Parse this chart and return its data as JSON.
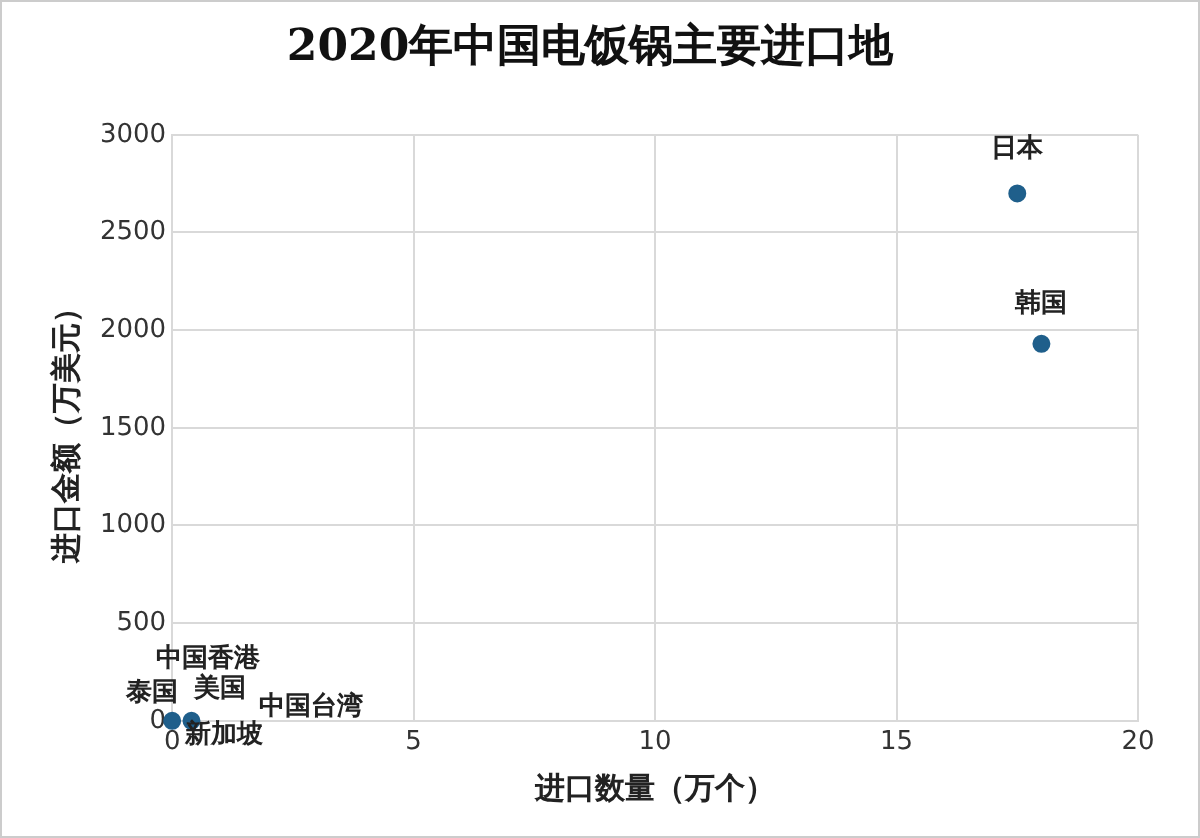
{
  "chart_data": {
    "type": "scatter",
    "title": "2020年中国电饭锅主要进口地",
    "xlabel": "进口数量（万个）",
    "ylabel": "进口金额（万美元）",
    "series": [
      {
        "name": "日本",
        "color": "#1f5f8b",
        "x": [
          17.5
        ],
        "values": [
          2700
        ]
      },
      {
        "name": "韩国",
        "color": "#1f5f8b",
        "x": [
          18
        ],
        "values": [
          1930
        ]
      },
      {
        "name": "泰国",
        "color": "#1f5f8b",
        "x": [
          0
        ],
        "values": [
          0
        ]
      },
      {
        "name": "中国台湾",
        "color": "#1f5f8b",
        "x": [
          0.4
        ],
        "values": [
          0
        ]
      }
    ],
    "annotations": [
      "中国香港",
      "美国",
      "新加坡"
    ],
    "xlim": [
      0,
      20
    ],
    "xticks": [
      0,
      5,
      10,
      15,
      20
    ],
    "ylim": [
      0,
      3000
    ],
    "yticks": [
      0,
      500,
      1000,
      1500,
      2000,
      2500,
      3000
    ],
    "grid": true,
    "marker": "circle",
    "legend": false
  }
}
